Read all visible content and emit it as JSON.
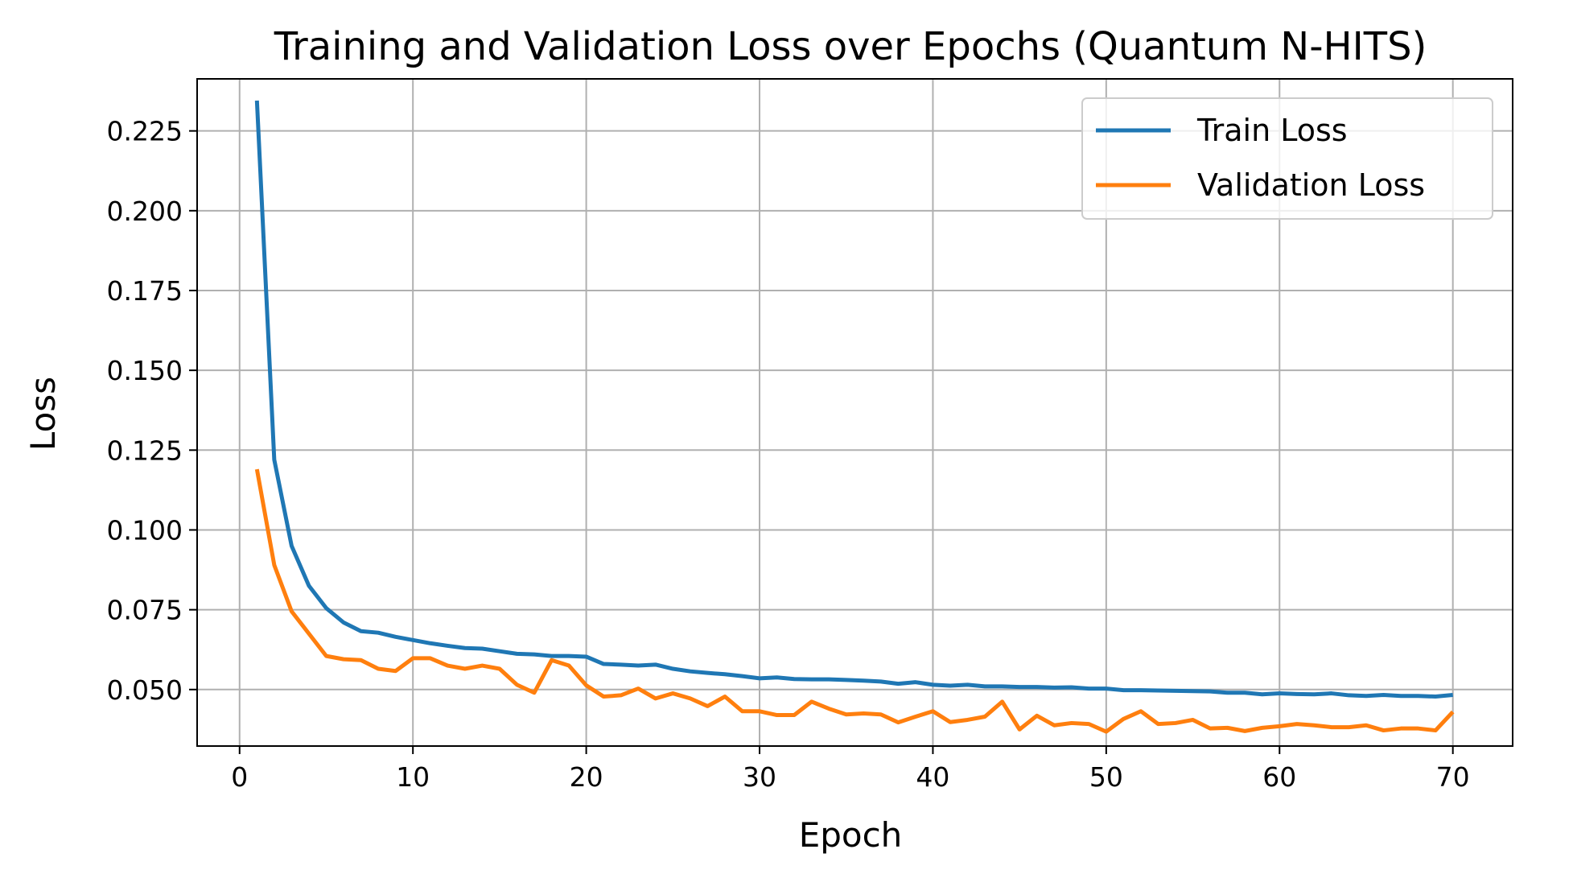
{
  "chart_data": {
    "type": "line",
    "title": "Training and Validation Loss over Epochs (Quantum N-HITS)",
    "xlabel": "Epoch",
    "ylabel": "Loss",
    "xlim": [
      -2.45,
      73.45
    ],
    "ylim": [
      0.0323,
      0.2413
    ],
    "xticks": [
      0,
      10,
      20,
      30,
      40,
      50,
      60,
      70
    ],
    "xtick_labels": [
      "0",
      "10",
      "20",
      "30",
      "40",
      "50",
      "60",
      "70"
    ],
    "yticks": [
      0.05,
      0.075,
      0.1,
      0.125,
      0.15,
      0.175,
      0.2,
      0.225
    ],
    "ytick_labels": [
      "0.050",
      "0.075",
      "0.100",
      "0.125",
      "0.150",
      "0.175",
      "0.200",
      "0.225"
    ],
    "grid": true,
    "legend_position": "top-right",
    "x": [
      1,
      2,
      3,
      4,
      5,
      6,
      7,
      8,
      9,
      10,
      11,
      12,
      13,
      14,
      15,
      16,
      17,
      18,
      19,
      20,
      21,
      22,
      23,
      24,
      25,
      26,
      27,
      28,
      29,
      30,
      31,
      32,
      33,
      34,
      35,
      36,
      37,
      38,
      39,
      40,
      41,
      42,
      43,
      44,
      45,
      46,
      47,
      48,
      49,
      50,
      51,
      52,
      53,
      54,
      55,
      56,
      57,
      58,
      59,
      60,
      61,
      62,
      63,
      64,
      65,
      66,
      67,
      68,
      69,
      70
    ],
    "series": [
      {
        "name": "Train Loss",
        "color": "#1f77b4",
        "values": [
          0.2345,
          0.122,
          0.095,
          0.0825,
          0.0755,
          0.071,
          0.0683,
          0.0678,
          0.0665,
          0.0655,
          0.0645,
          0.0637,
          0.063,
          0.0628,
          0.062,
          0.0612,
          0.061,
          0.0605,
          0.0605,
          0.0603,
          0.058,
          0.0578,
          0.0575,
          0.0578,
          0.0565,
          0.0557,
          0.0552,
          0.0548,
          0.0542,
          0.0535,
          0.0538,
          0.0533,
          0.0532,
          0.0532,
          0.053,
          0.0528,
          0.0525,
          0.0518,
          0.0523,
          0.0515,
          0.0512,
          0.0515,
          0.051,
          0.051,
          0.0508,
          0.0508,
          0.0506,
          0.0507,
          0.0503,
          0.0503,
          0.0498,
          0.0498,
          0.0497,
          0.0496,
          0.0495,
          0.0494,
          0.049,
          0.049,
          0.0485,
          0.0488,
          0.0486,
          0.0485,
          0.0488,
          0.0482,
          0.048,
          0.0483,
          0.048,
          0.048,
          0.0478,
          0.0483
        ]
      },
      {
        "name": "Validation Loss",
        "color": "#ff7f0e",
        "values": [
          0.119,
          0.089,
          0.0745,
          0.0675,
          0.0605,
          0.0595,
          0.0592,
          0.0565,
          0.0558,
          0.0598,
          0.0598,
          0.0575,
          0.0565,
          0.0575,
          0.0565,
          0.0515,
          0.049,
          0.0592,
          0.0575,
          0.0513,
          0.0478,
          0.0482,
          0.0503,
          0.0472,
          0.0488,
          0.0472,
          0.0448,
          0.0478,
          0.0432,
          0.0432,
          0.042,
          0.042,
          0.0462,
          0.044,
          0.0422,
          0.0425,
          0.0422,
          0.0397,
          0.0415,
          0.0432,
          0.0398,
          0.0405,
          0.0415,
          0.0462,
          0.0375,
          0.0418,
          0.0388,
          0.0395,
          0.0392,
          0.0368,
          0.0408,
          0.0432,
          0.0392,
          0.0395,
          0.0405,
          0.0378,
          0.038,
          0.037,
          0.038,
          0.0385,
          0.0392,
          0.0388,
          0.0382,
          0.0382,
          0.0388,
          0.0372,
          0.0378,
          0.0378,
          0.0372,
          0.043
        ]
      }
    ]
  }
}
